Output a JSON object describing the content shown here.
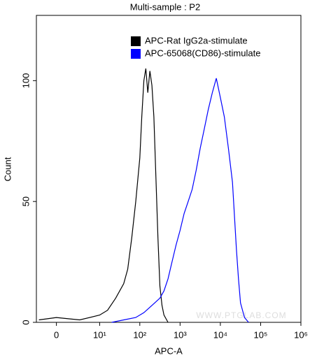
{
  "chart_data": {
    "type": "line",
    "title": "Multi-sample : P2",
    "x_label": "APC-A",
    "y_label": "Count",
    "watermark": "WWW.PTGLAB.COM",
    "xscale": "biexponential",
    "xlim": [
      -2.4,
      1000000
    ],
    "ylim": [
      0,
      127
    ],
    "xticks": [
      0,
      {
        "value": 10,
        "label": "10¹"
      },
      {
        "value": 100,
        "label": "10²"
      },
      {
        "value": 1000,
        "label": "10³"
      },
      {
        "value": 10000,
        "label": "10⁴"
      },
      {
        "value": 100000,
        "label": "10⁵"
      },
      {
        "value": 1000000,
        "label": "10⁶"
      }
    ],
    "yticks": [
      0,
      50,
      100
    ],
    "series": [
      {
        "name": "APC-Rat IgG2a-stimulate",
        "color": "#000000",
        "x": [
          -2,
          0,
          3,
          10,
          15.8,
          25.1,
          39.8,
          50.1,
          63.1,
          79.4,
          100,
          112,
          126,
          141,
          158,
          178,
          200,
          224,
          251,
          282,
          316,
          355,
          398,
          501
        ],
        "values": [
          1,
          2,
          1,
          3,
          5,
          10,
          16,
          22,
          35,
          50,
          68,
          85,
          100,
          105,
          95,
          104,
          98,
          85,
          60,
          35,
          15,
          7,
          3,
          0
        ]
      },
      {
        "name": "APC-65068(CD86)-stimulate",
        "color": "#0000ff",
        "x": [
          20,
          40,
          79,
          126,
          200,
          316,
          398,
          501,
          631,
          794,
          1000,
          1259,
          1585,
          1995,
          2512,
          3162,
          3981,
          5012,
          6310,
          7943,
          10000,
          12589,
          15849,
          19953,
          25119,
          28184,
          31623,
          39811,
          50119
        ],
        "values": [
          0,
          1,
          2,
          4,
          7,
          10,
          13,
          18,
          25,
          32,
          38,
          45,
          50,
          55,
          63,
          72,
          80,
          88,
          95,
          101,
          93,
          85,
          72,
          58,
          30,
          18,
          8,
          2,
          0
        ]
      }
    ]
  }
}
